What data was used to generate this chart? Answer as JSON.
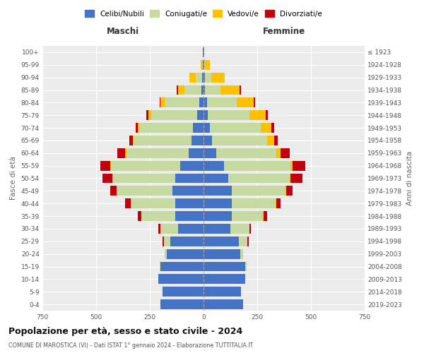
{
  "age_groups": [
    "0-4",
    "5-9",
    "10-14",
    "15-19",
    "20-24",
    "25-29",
    "30-34",
    "35-39",
    "40-44",
    "45-49",
    "50-54",
    "55-59",
    "60-64",
    "65-69",
    "70-74",
    "75-79",
    "80-84",
    "85-89",
    "90-94",
    "95-99",
    "100+"
  ],
  "birth_years": [
    "2019-2023",
    "2014-2018",
    "2009-2013",
    "2004-2008",
    "1999-2003",
    "1994-1998",
    "1989-1993",
    "1984-1988",
    "1979-1983",
    "1974-1978",
    "1969-1973",
    "1964-1968",
    "1959-1963",
    "1954-1958",
    "1949-1953",
    "1944-1948",
    "1939-1943",
    "1934-1938",
    "1929-1933",
    "1924-1928",
    "≤ 1923"
  ],
  "males_celibi": [
    200,
    190,
    210,
    200,
    170,
    155,
    120,
    130,
    130,
    145,
    130,
    110,
    70,
    55,
    50,
    30,
    20,
    10,
    5,
    3,
    2
  ],
  "males_coniugati": [
    0,
    0,
    0,
    5,
    10,
    30,
    80,
    160,
    205,
    255,
    290,
    320,
    290,
    270,
    250,
    215,
    160,
    80,
    30,
    5,
    0
  ],
  "males_vedovi": [
    0,
    0,
    0,
    0,
    0,
    0,
    0,
    0,
    5,
    5,
    5,
    5,
    5,
    5,
    5,
    10,
    20,
    30,
    30,
    5,
    0
  ],
  "males_divorziati": [
    0,
    0,
    0,
    0,
    0,
    5,
    10,
    15,
    25,
    30,
    45,
    45,
    35,
    15,
    10,
    10,
    5,
    5,
    0,
    0,
    0
  ],
  "females_celibi": [
    185,
    175,
    195,
    195,
    170,
    165,
    125,
    130,
    130,
    130,
    115,
    95,
    60,
    40,
    30,
    20,
    15,
    8,
    5,
    3,
    2
  ],
  "females_coniugati": [
    0,
    0,
    0,
    5,
    15,
    40,
    90,
    145,
    205,
    250,
    285,
    310,
    280,
    255,
    235,
    195,
    140,
    70,
    30,
    5,
    0
  ],
  "females_vedovi": [
    0,
    0,
    0,
    0,
    0,
    0,
    0,
    5,
    5,
    5,
    5,
    10,
    20,
    35,
    50,
    75,
    80,
    90,
    65,
    20,
    2
  ],
  "females_divorziati": [
    0,
    0,
    0,
    0,
    0,
    5,
    5,
    15,
    20,
    30,
    55,
    60,
    40,
    15,
    15,
    10,
    5,
    5,
    0,
    0,
    0
  ],
  "color_celibi": "#4472C4",
  "color_coniugati": "#C6D9A0",
  "color_vedovi": "#FFC000",
  "color_divorziati": "#C0000C",
  "title": "Popolazione per età, sesso e stato civile - 2024",
  "subtitle": "COMUNE DI MAROSTICA (VI) - Dati ISTAT 1° gennaio 2024 - Elaborazione TUTTITALIA.IT",
  "xlabel_left": "Maschi",
  "xlabel_right": "Femmine",
  "ylabel_left": "Fasce di età",
  "ylabel_right": "Anni di nascita",
  "xlim": 750,
  "background_color": "#ffffff",
  "plot_bg_color": "#ebebeb",
  "grid_color": "#ffffff"
}
